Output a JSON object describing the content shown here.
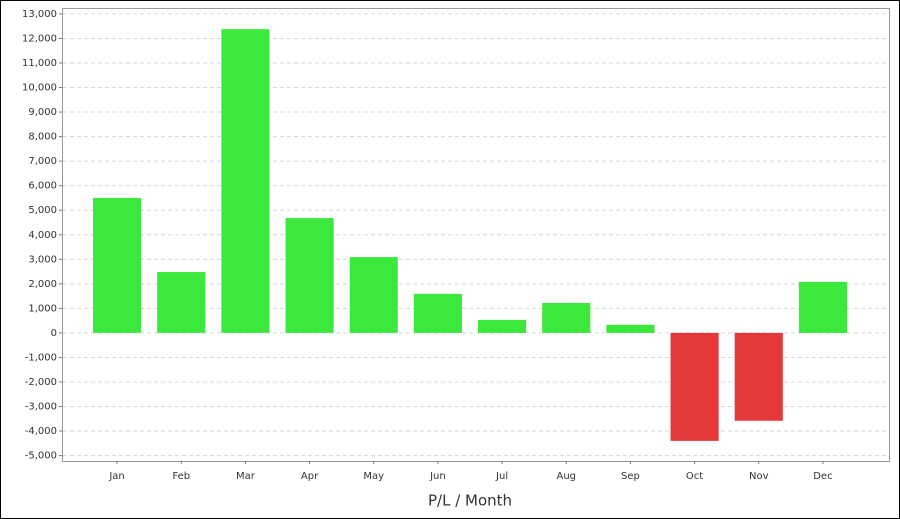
{
  "chart_data": {
    "type": "bar",
    "x_label": "P/L / Month",
    "categories": [
      "Jan",
      "Feb",
      "Mar",
      "Apr",
      "May",
      "Jun",
      "Jul",
      "Aug",
      "Sep",
      "Oct",
      "Nov",
      "Dec"
    ],
    "values": [
      5500,
      2480,
      12380,
      4680,
      3090,
      1590,
      530,
      1220,
      330,
      -4400,
      -3580,
      2080
    ],
    "positive_color": "#3de83d",
    "negative_color": "#e5383b",
    "ylim": [
      -5220,
      13200
    ],
    "yticks": [
      {
        "value": -5000,
        "label": "-5,000"
      },
      {
        "value": -4000,
        "label": "-4,000"
      },
      {
        "value": -3000,
        "label": "-3,000"
      },
      {
        "value": -2000,
        "label": "-2,000"
      },
      {
        "value": -1000,
        "label": "-1,000"
      },
      0,
      {
        "value": 1000,
        "label": "1,000"
      },
      {
        "value": 2000,
        "label": "2,000"
      },
      {
        "value": 3000,
        "label": "3,000"
      },
      {
        "value": 4000,
        "label": "4,000"
      },
      {
        "value": 5000,
        "label": "5,000"
      },
      {
        "value": 6000,
        "label": "6,000"
      },
      {
        "value": 7000,
        "label": "7,000"
      },
      {
        "value": 8000,
        "label": "8,000"
      },
      {
        "value": 9000,
        "label": "9,000"
      },
      {
        "value": 10000,
        "label": "10,000"
      },
      {
        "value": 11000,
        "label": "11,000"
      },
      {
        "value": 12000,
        "label": "12,000"
      },
      {
        "value": 13000,
        "label": "13,000"
      }
    ],
    "grid": true
  }
}
